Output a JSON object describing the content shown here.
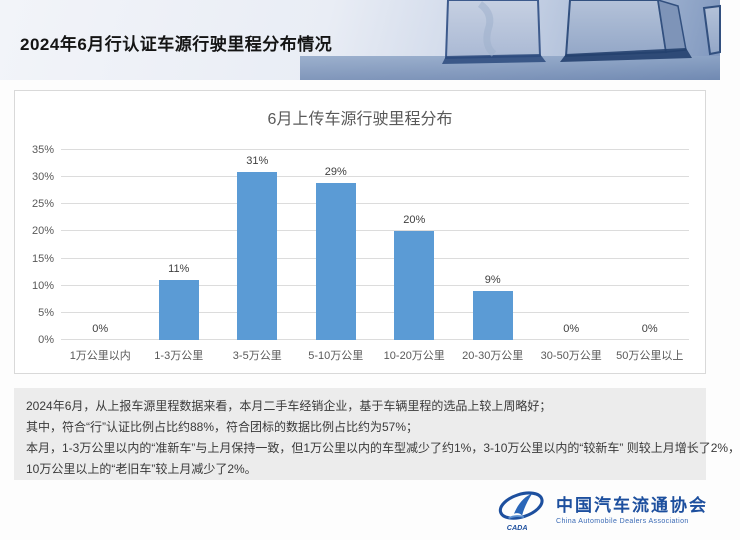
{
  "header": {
    "title": "2024年6月行认证车源行驶里程分布情况"
  },
  "chart_data": {
    "type": "bar",
    "title": "6月上传车源行驶里程分布",
    "categories": [
      "1万公里以内",
      "1-3万公里",
      "3-5万公里",
      "5-10万公里",
      "10-20万公里",
      "20-30万公里",
      "30-50万公里",
      "50万公里以上"
    ],
    "values": [
      0,
      11,
      31,
      29,
      20,
      9,
      0,
      0
    ],
    "data_labels": [
      "0%",
      "11%",
      "31%",
      "29%",
      "20%",
      "9%",
      "0%",
      "0%"
    ],
    "xlabel": "",
    "ylabel": "",
    "ylim": [
      0,
      35
    ],
    "ytick_step": 5,
    "yticks": [
      "0%",
      "5%",
      "10%",
      "15%",
      "20%",
      "25%",
      "30%",
      "35%"
    ],
    "grid": true,
    "legend": "none",
    "bar_color": "#5b9bd5"
  },
  "summary": {
    "lines": [
      "2024年6月，从上报车源里程数据来看，本月二手车经销企业，基于车辆里程的选品上较上周略好；",
      "其中，符合“行”认证比例占比约88%，符合团标的数据比例占比约为57%；",
      "本月，1-3万公里以内的“准新车”与上月保持一致，但1万公里以内的车型减少了约1%，3-10万公里以内的“较新车” 则较上月增长了2%，",
      "10万公里以上的“老旧车”较上月减少了2%。"
    ]
  },
  "footer": {
    "org_name": "中国汽车流通协会",
    "org_name_en": "China Automobile Dealers Association"
  },
  "colors": {
    "bar": "#5b9bd5",
    "grid": "#dcdcdc",
    "logo_blue": "#1d4f9e",
    "summary_bg": "#ececec"
  }
}
